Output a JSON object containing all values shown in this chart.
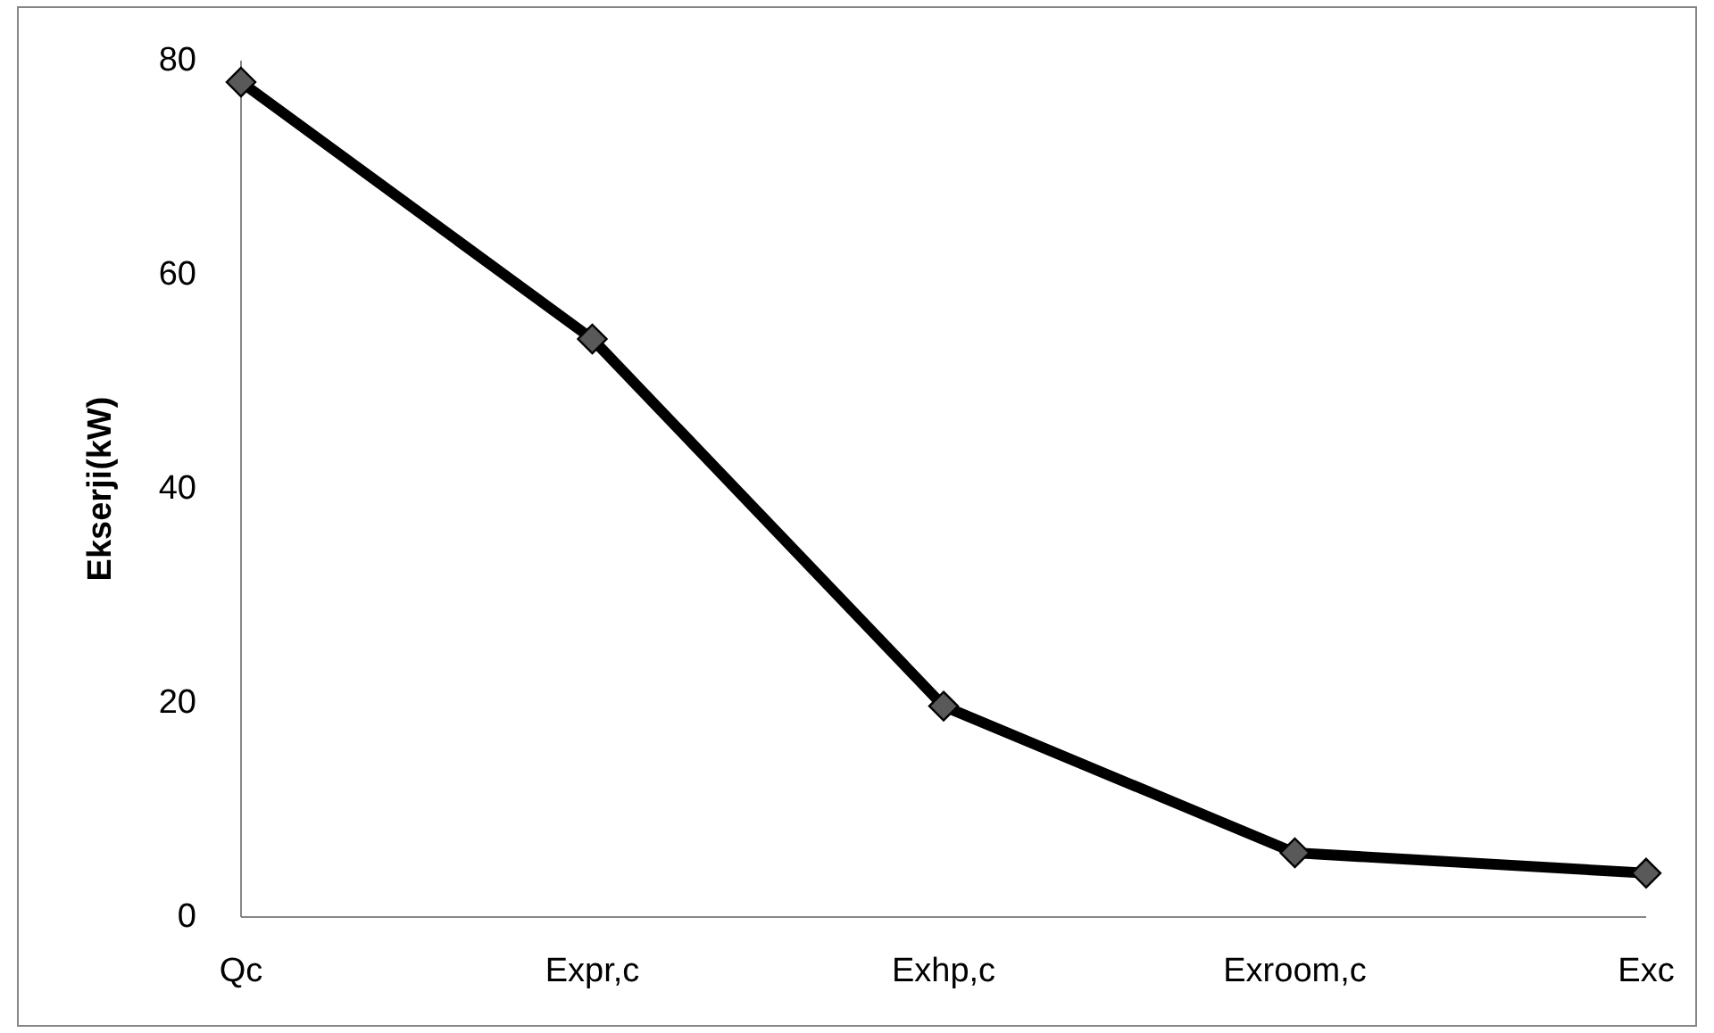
{
  "chart_data": {
    "type": "line",
    "ylabel": "Ekserji(kW)",
    "categories": [
      "Qc",
      "Expr,c",
      "Exhp,c",
      "Exroom,c",
      "Exc"
    ],
    "series": [
      {
        "color": "#000000",
        "values": [
          78,
          54,
          19.7,
          6,
          4.1
        ]
      }
    ],
    "ylim": [
      0,
      80
    ],
    "yticks": [
      0,
      20,
      40,
      60,
      80
    ],
    "grid": false,
    "marker": "diamond",
    "line_style": "solid"
  }
}
